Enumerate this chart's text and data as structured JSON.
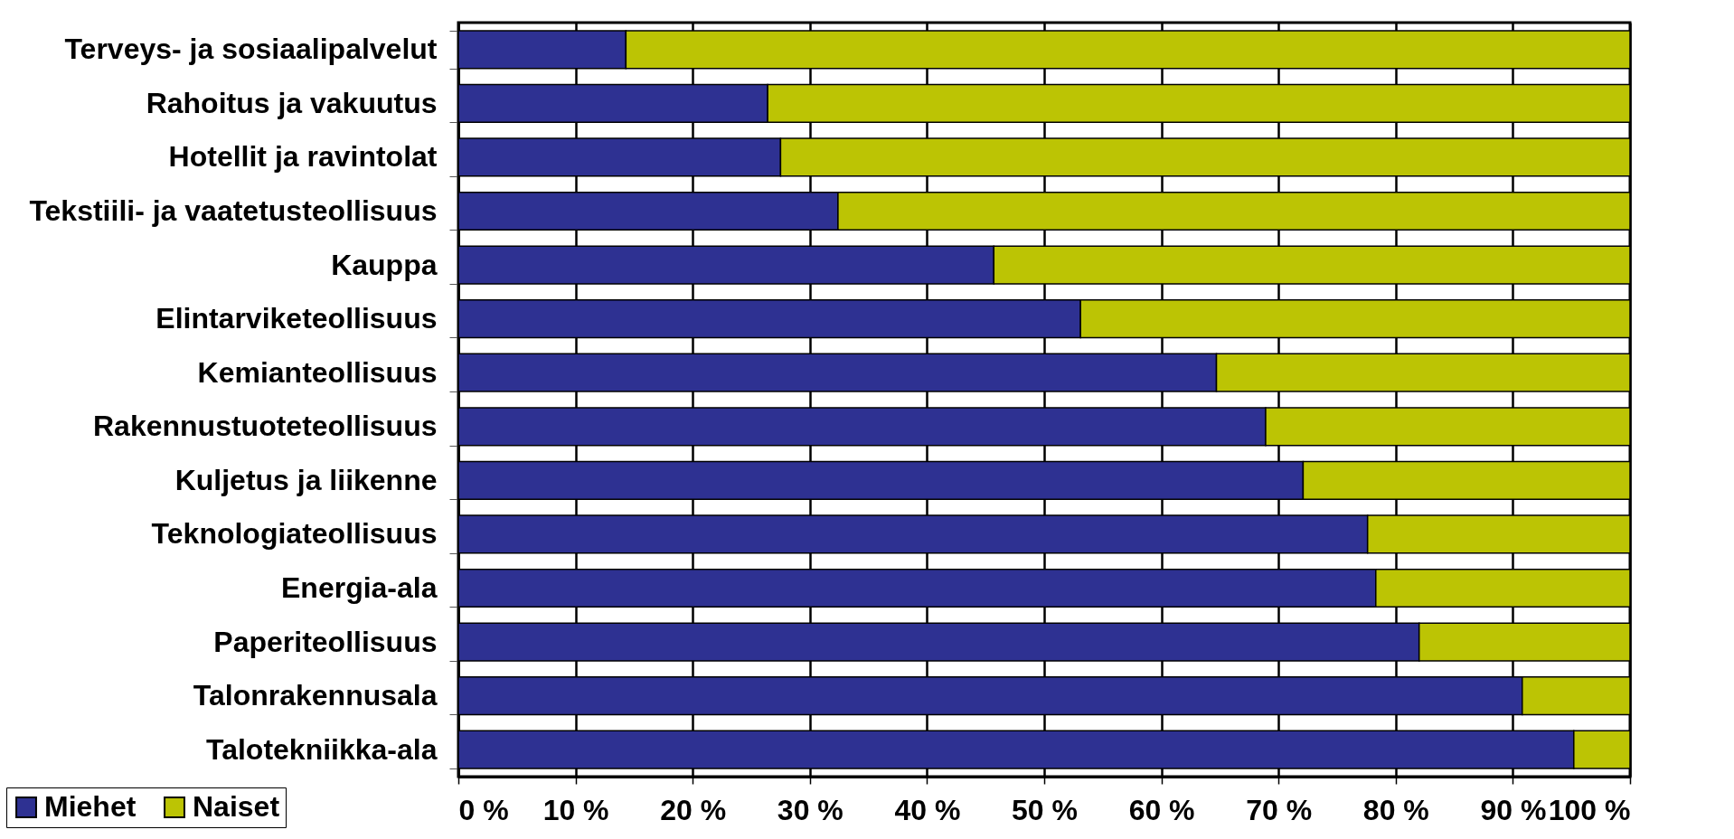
{
  "chart_data": {
    "type": "bar",
    "orientation": "horizontal",
    "stacked": true,
    "categories": [
      "Terveys- ja sosiaalipalvelut",
      "Rahoitus ja vakuutus",
      "Hotellit ja ravintolat",
      "Tekstiili- ja vaatetusteollisuus",
      "Kauppa",
      "Elintarviketeollisuus",
      "Kemianteollisuus",
      "Rakennustuoteteollisuus",
      "Kuljetus ja liikenne",
      "Teknologiateollisuus",
      "Energia-ala",
      "Paperiteollisuus",
      "Talonrakennusala",
      "Talotekniikka-ala"
    ],
    "series": [
      {
        "name": "Miehet",
        "color": "#2e3192",
        "values": [
          14.3,
          26.4,
          27.5,
          32.4,
          45.7,
          53.1,
          64.7,
          68.9,
          72.1,
          77.6,
          78.3,
          82.0,
          90.8,
          95.2
        ]
      },
      {
        "name": "Naiset",
        "color": "#bcc404",
        "values": [
          85.7,
          73.6,
          72.5,
          67.6,
          54.3,
          46.9,
          35.3,
          31.1,
          27.9,
          22.4,
          21.7,
          18.0,
          9.2,
          4.8
        ]
      }
    ],
    "xlim": [
      0,
      100
    ],
    "xticks": [
      {
        "value": 0,
        "label": "0 %"
      },
      {
        "value": 10,
        "label": "10 %"
      },
      {
        "value": 20,
        "label": "20 %"
      },
      {
        "value": 30,
        "label": "30 %"
      },
      {
        "value": 40,
        "label": "40 %"
      },
      {
        "value": 50,
        "label": "50 %"
      },
      {
        "value": 60,
        "label": "60 %"
      },
      {
        "value": 70,
        "label": "70 %"
      },
      {
        "value": 80,
        "label": "80 %"
      },
      {
        "value": 90,
        "label": "90 %"
      },
      {
        "value": 100,
        "label": "100 %"
      }
    ],
    "grid": "x",
    "legend": "bottom left"
  }
}
